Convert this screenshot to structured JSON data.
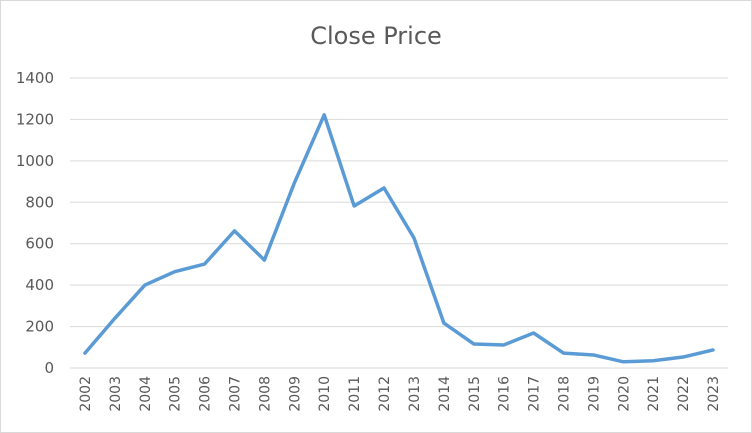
{
  "chart_data": {
    "type": "line",
    "title": "Close Price",
    "xlabel": "",
    "ylabel": "",
    "categories": [
      "2002",
      "2003",
      "2004",
      "2005",
      "2006",
      "2007",
      "2008",
      "2009",
      "2010",
      "2011",
      "2012",
      "2013",
      "2014",
      "2015",
      "2016",
      "2017",
      "2018",
      "2019",
      "2020",
      "2021",
      "2022",
      "2023"
    ],
    "series": [
      {
        "name": "Close Price",
        "color": "#5b9bd5",
        "values": [
          72,
          240,
          400,
          465,
          502,
          662,
          521,
          893,
          1222,
          782,
          869,
          628,
          217,
          116,
          111,
          169,
          72,
          63,
          30,
          35,
          53,
          87
        ]
      }
    ],
    "ylim": [
      0,
      1400
    ],
    "yticks": [
      0,
      200,
      400,
      600,
      800,
      1000,
      1200,
      1400
    ],
    "grid": true,
    "legend": "none"
  }
}
